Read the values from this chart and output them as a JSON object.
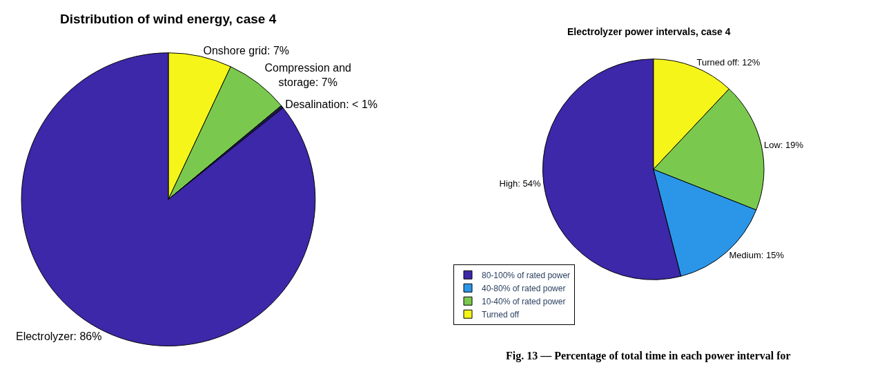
{
  "chart_data": [
    {
      "type": "pie",
      "title": "Distribution of wind energy, case 4",
      "categories": [
        null,
        null,
        null,
        null
      ],
      "values": [
        7,
        7,
        0.3,
        86
      ],
      "value_labels": [
        "Onshore grid: 7%",
        "Compression and\nstorage: 7%",
        "Desalination: < 1%",
        "Electrolyzer: 86%"
      ],
      "colors": [
        "#f5f51a",
        "#7ac94e",
        "#1e1b4a",
        "#3c28a8"
      ],
      "legend": false
    },
    {
      "type": "pie",
      "title": "Electrolyzer power intervals, case 4",
      "categories": [
        "Turned off",
        "10-40% of rated power",
        "40-80% of rated power",
        "80-100% of rated power"
      ],
      "values": [
        12,
        19,
        15,
        54
      ],
      "value_labels": [
        "Turned off: 12%",
        "Low: 19%",
        "Medium: 15%",
        "High: 54%"
      ],
      "colors": [
        "#f5f51a",
        "#7ac94e",
        "#2b96e8",
        "#3c28a8"
      ],
      "legend": "bottom left",
      "annotations": [
        "Fig. 13 — Percentage of total time in each power interval for"
      ]
    }
  ]
}
